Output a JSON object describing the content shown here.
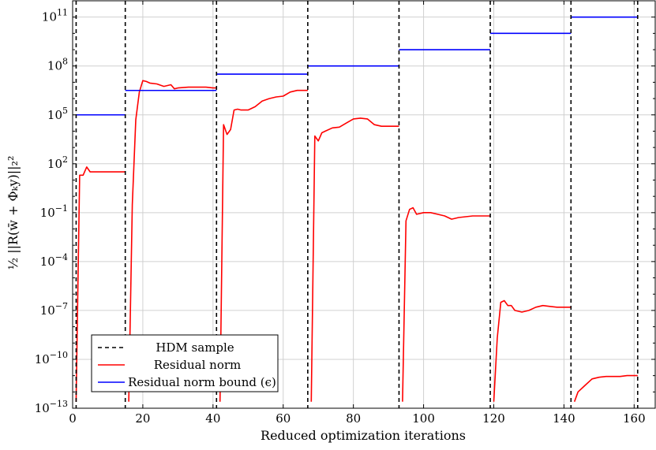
{
  "chart_data": {
    "type": "line",
    "title": "",
    "xlabel": "Reduced optimization iterations",
    "ylabel": "½ ||R(w̄ + Φₖy)||₂²",
    "y_scale": "log",
    "xlim": [
      0,
      166
    ],
    "ylim_exponent": [
      -13,
      12
    ],
    "x_ticks": [
      {
        "value": 0,
        "label": "0"
      },
      {
        "value": 20,
        "label": "20"
      },
      {
        "value": 40,
        "label": "40"
      },
      {
        "value": 60,
        "label": "60"
      },
      {
        "value": 80,
        "label": "80"
      },
      {
        "value": 100,
        "label": "100"
      },
      {
        "value": 120,
        "label": "120"
      },
      {
        "value": 140,
        "label": "140"
      },
      {
        "value": 160,
        "label": "160"
      }
    ],
    "y_ticks": [
      {
        "exponent": -13,
        "base": "10",
        "exp_label": "−13"
      },
      {
        "exponent": -10,
        "base": "10",
        "exp_label": "−10"
      },
      {
        "exponent": -7,
        "base": "10",
        "exp_label": "−7"
      },
      {
        "exponent": -4,
        "base": "10",
        "exp_label": "−4"
      },
      {
        "exponent": -1,
        "base": "10",
        "exp_label": "−1"
      },
      {
        "exponent": 2,
        "base": "10",
        "exp_label": "2"
      },
      {
        "exponent": 5,
        "base": "10",
        "exp_label": "5"
      },
      {
        "exponent": 8,
        "base": "10",
        "exp_label": "8"
      },
      {
        "exponent": 11,
        "base": "10",
        "exp_label": "11"
      }
    ],
    "grid": true,
    "legend_position": "bottom-left",
    "series": [
      {
        "name": "HDM sample",
        "kind": "vlines",
        "color": "#000000",
        "dash": "dashed",
        "x": [
          1,
          15,
          41,
          67,
          93,
          119,
          142,
          161
        ]
      },
      {
        "name": "Residual norm",
        "kind": "segments",
        "color": "#ff0000",
        "segments": [
          [
            [
              1,
              -12.6
            ],
            [
              2,
              1.3
            ],
            [
              3,
              1.3
            ],
            [
              4,
              1.8
            ],
            [
              5,
              1.5
            ],
            [
              6,
              1.5
            ],
            [
              8,
              1.5
            ],
            [
              10,
              1.5
            ],
            [
              12,
              1.5
            ],
            [
              15,
              1.5
            ]
          ],
          [
            [
              16,
              -12.6
            ],
            [
              17,
              -0.5
            ],
            [
              18,
              4.7
            ],
            [
              19,
              6.4
            ],
            [
              20,
              7.1
            ],
            [
              21,
              7.05
            ],
            [
              22,
              6.95
            ],
            [
              24,
              6.9
            ],
            [
              26,
              6.75
            ],
            [
              28,
              6.85
            ],
            [
              29,
              6.6
            ],
            [
              30,
              6.65
            ],
            [
              33,
              6.7
            ],
            [
              36,
              6.7
            ],
            [
              38,
              6.7
            ],
            [
              40,
              6.65
            ],
            [
              41,
              6.65
            ]
          ],
          [
            [
              42,
              -12.6
            ],
            [
              43,
              4.4
            ],
            [
              44,
              3.8
            ],
            [
              45,
              4.1
            ],
            [
              46,
              5.3
            ],
            [
              47,
              5.35
            ],
            [
              48,
              5.3
            ],
            [
              50,
              5.3
            ],
            [
              52,
              5.5
            ],
            [
              54,
              5.85
            ],
            [
              56,
              6.0
            ],
            [
              58,
              6.1
            ],
            [
              60,
              6.15
            ],
            [
              62,
              6.4
            ],
            [
              64,
              6.5
            ],
            [
              67,
              6.5
            ]
          ],
          [
            [
              68,
              -12.6
            ],
            [
              69,
              3.7
            ],
            [
              70,
              3.4
            ],
            [
              71,
              3.9
            ],
            [
              72,
              4.0
            ],
            [
              74,
              4.2
            ],
            [
              76,
              4.25
            ],
            [
              78,
              4.5
            ],
            [
              80,
              4.75
            ],
            [
              82,
              4.8
            ],
            [
              84,
              4.75
            ],
            [
              86,
              4.4
            ],
            [
              88,
              4.3
            ],
            [
              90,
              4.3
            ],
            [
              93,
              4.3
            ]
          ],
          [
            [
              94,
              -12.6
            ],
            [
              95,
              -1.5
            ],
            [
              96,
              -0.8
            ],
            [
              97,
              -0.7
            ],
            [
              98,
              -1.1
            ],
            [
              100,
              -1.0
            ],
            [
              102,
              -1.0
            ],
            [
              104,
              -1.1
            ],
            [
              106,
              -1.2
            ],
            [
              108,
              -1.4
            ],
            [
              110,
              -1.3
            ],
            [
              112,
              -1.25
            ],
            [
              114,
              -1.2
            ],
            [
              116,
              -1.2
            ],
            [
              119,
              -1.2
            ]
          ],
          [
            [
              120,
              -12.6
            ],
            [
              121,
              -8.7
            ],
            [
              122,
              -6.5
            ],
            [
              123,
              -6.4
            ],
            [
              124,
              -6.7
            ],
            [
              125,
              -6.7
            ],
            [
              126,
              -7.0
            ],
            [
              128,
              -7.1
            ],
            [
              130,
              -7.0
            ],
            [
              132,
              -6.8
            ],
            [
              134,
              -6.7
            ],
            [
              136,
              -6.75
            ],
            [
              138,
              -6.8
            ],
            [
              140,
              -6.8
            ],
            [
              142,
              -6.8
            ]
          ],
          [
            [
              143,
              -12.6
            ],
            [
              144,
              -12.0
            ],
            [
              146,
              -11.6
            ],
            [
              148,
              -11.2
            ],
            [
              150,
              -11.1
            ],
            [
              152,
              -11.05
            ],
            [
              154,
              -11.05
            ],
            [
              156,
              -11.05
            ],
            [
              158,
              -11.0
            ],
            [
              161,
              -11.0
            ]
          ]
        ]
      },
      {
        "name": "Residual norm bound (ϵ)",
        "kind": "steps",
        "color": "#0000ff",
        "steps": [
          {
            "x0": 1,
            "x1": 15,
            "exponent": 5
          },
          {
            "x0": 15,
            "x1": 41,
            "exponent": 6.5
          },
          {
            "x0": 41,
            "x1": 67,
            "exponent": 7.5
          },
          {
            "x0": 67,
            "x1": 93,
            "exponent": 8
          },
          {
            "x0": 93,
            "x1": 119,
            "exponent": 9
          },
          {
            "x0": 119,
            "x1": 142,
            "exponent": 10
          },
          {
            "x0": 142,
            "x1": 161,
            "exponent": 11
          }
        ]
      }
    ]
  }
}
